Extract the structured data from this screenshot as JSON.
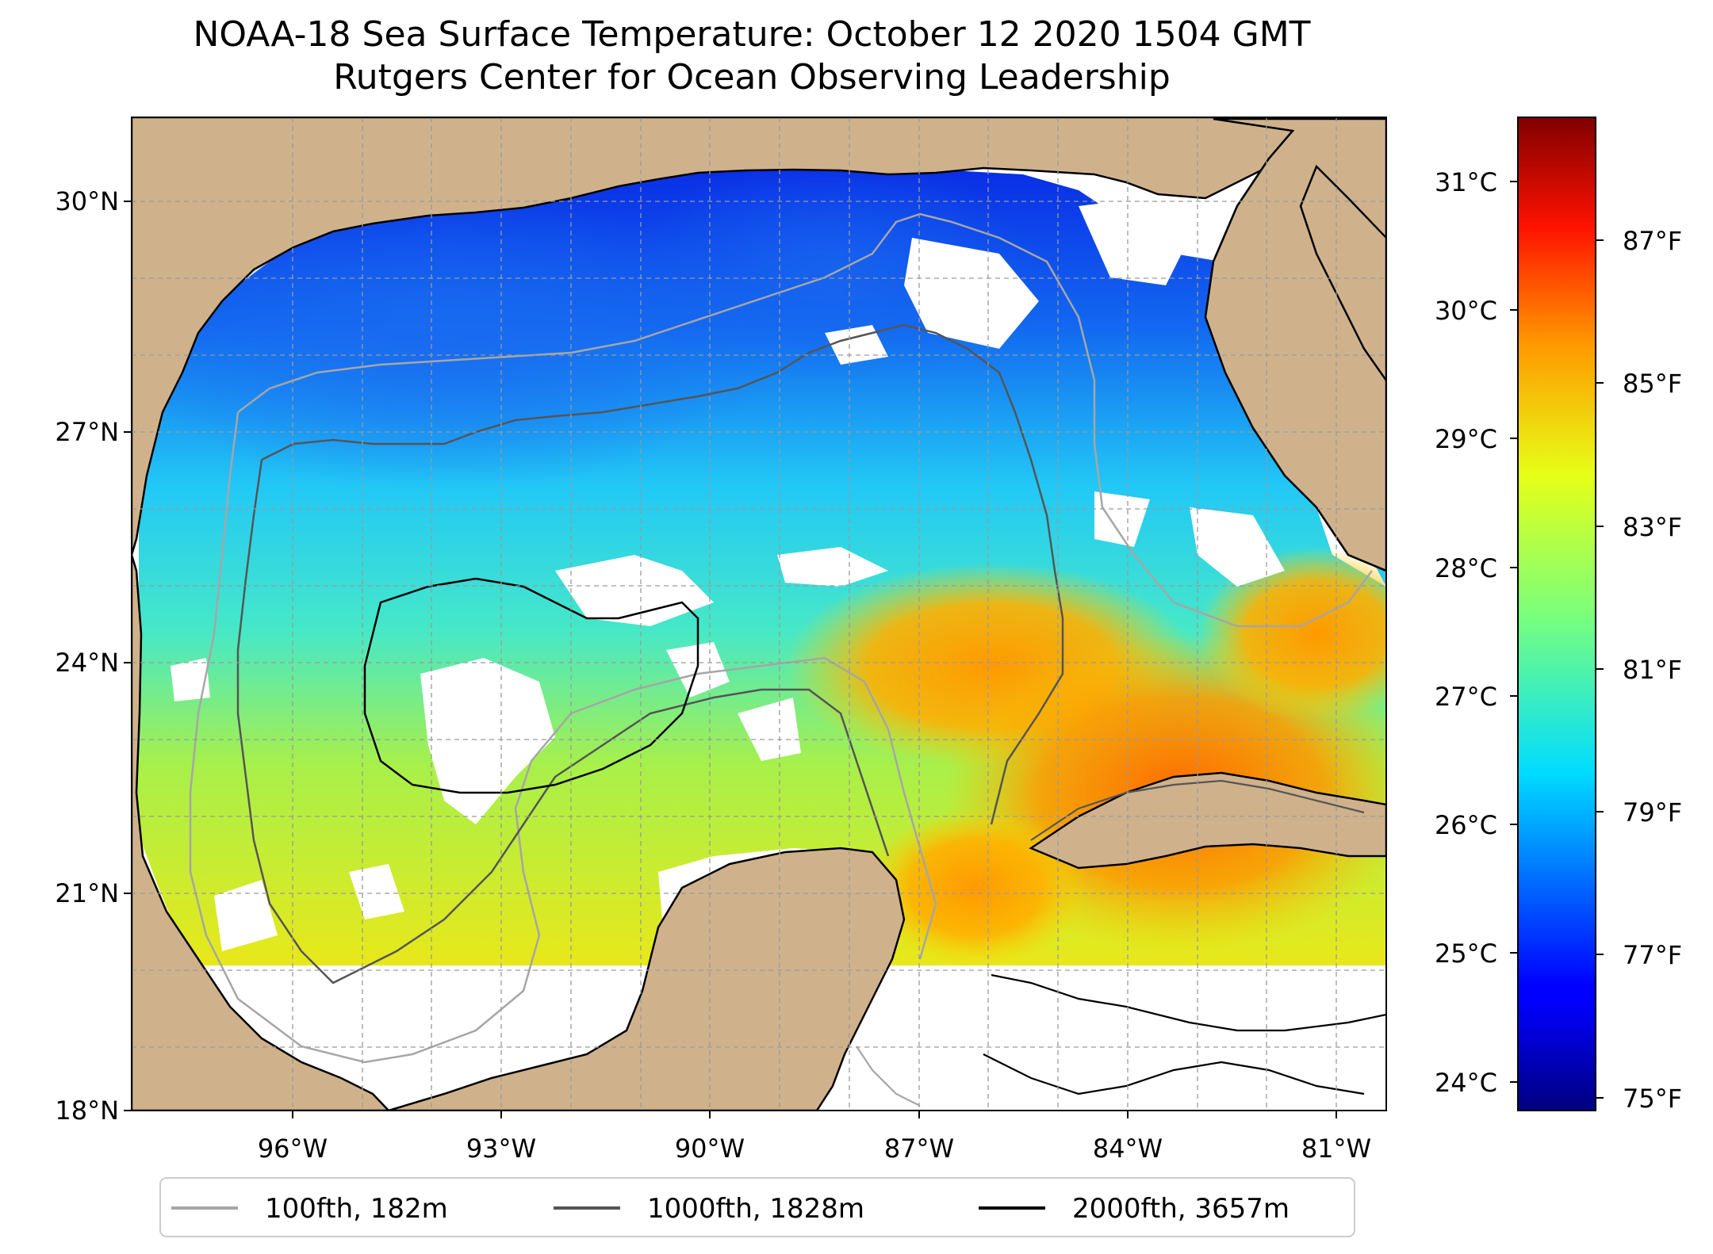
{
  "title": {
    "line1": "NOAA-18 Sea Surface Temperature: October 12 2020 1504 GMT",
    "line2": "Rutgers Center for Ocean Observing Leadership"
  },
  "map": {
    "lon_range": [
      -98.0,
      -80.2
    ],
    "lat_range": [
      18.0,
      31.0
    ],
    "lon_ticks": [
      "96°W",
      "93°W",
      "90°W",
      "87°W",
      "84°W",
      "81°W"
    ],
    "lat_ticks": [
      "30°N",
      "27°N",
      "24°N",
      "21°N",
      "18°N"
    ],
    "gridlines": true,
    "land_color": "#cfb28c",
    "no_data_color": "#ffffff"
  },
  "colorbar": {
    "colormap": "jet",
    "celsius_ticks": [
      "31°C",
      "30°C",
      "29°C",
      "28°C",
      "27°C",
      "26°C",
      "25°C",
      "24°C"
    ],
    "fahrenheit_ticks": [
      "87°F",
      "85°F",
      "83°F",
      "81°F",
      "79°F",
      "77°F",
      "75°F"
    ],
    "range_f": [
      74.8,
      88.7
    ]
  },
  "legend": {
    "placement": "bottom-center",
    "items": [
      {
        "label": "100fth, 182m",
        "color": "#a6a6a6"
      },
      {
        "label": "1000fth, 1828m",
        "color": "#555555"
      },
      {
        "label": "2000fth, 3657m",
        "color": "#000000"
      }
    ]
  }
}
